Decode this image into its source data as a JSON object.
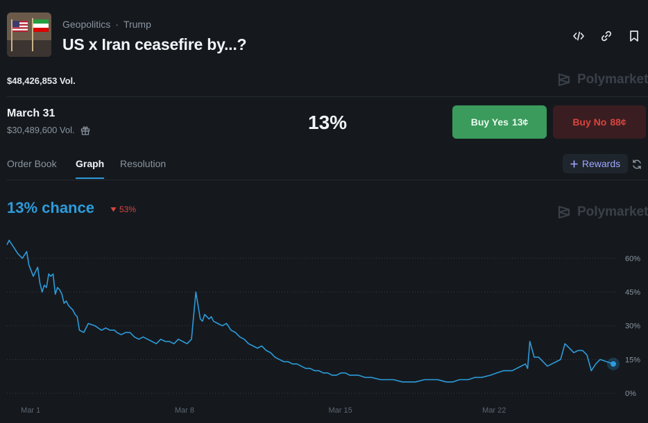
{
  "header": {
    "breadcrumbs": [
      "Geopolitics",
      "Trump"
    ],
    "separator": "·",
    "title": "US x Iran ceasefire by...?",
    "volume": "$48,426,853 Vol.",
    "brand": "Polymarket"
  },
  "outcome": {
    "date": "March 31",
    "volume": "$30,489,600 Vol.",
    "probability": "13%",
    "buy_yes_label": "Buy Yes",
    "buy_yes_price": "13¢",
    "buy_no_label": "Buy No",
    "buy_no_price": "88¢"
  },
  "tabs": [
    "Order Book",
    "Graph",
    "Resolution"
  ],
  "active_tab": "Graph",
  "rewards_label": "Rewards",
  "chart_header": {
    "chance": "13% chance",
    "change": "53%",
    "change_direction": "down",
    "brand": "Polymarket"
  },
  "colors": {
    "accent": "#2d9cdb",
    "yes": "#3a9b5c",
    "no": "#d9453f"
  },
  "chart_data": {
    "type": "line",
    "title": "",
    "xlabel": "",
    "ylabel": "",
    "x_ticks": [
      "Mar 1",
      "Mar 8",
      "Mar 15",
      "Mar 22"
    ],
    "y_ticks": [
      "60%",
      "45%",
      "30%",
      "15%",
      "0%"
    ],
    "ylim": [
      0,
      70
    ],
    "xlim": [
      0,
      27.6
    ],
    "grid": "horizontal dotted",
    "series": [
      {
        "x": [
          0,
          0.1,
          0.3,
          0.5,
          0.7,
          0.9,
          1.0,
          1.2,
          1.4,
          1.5,
          1.6,
          1.7,
          1.8,
          1.9,
          2.0,
          2.1,
          2.2,
          2.3,
          2.4,
          2.5,
          2.6,
          2.7,
          2.8,
          2.9,
          3.0,
          3.1,
          3.2,
          3.3,
          3.5,
          3.7,
          4.0,
          4.3,
          4.5,
          4.7,
          4.9,
          5.0,
          5.2,
          5.4,
          5.6,
          5.8,
          6.0,
          6.2,
          6.4,
          6.6,
          6.8,
          7.0,
          7.2,
          7.4,
          7.6,
          7.8,
          8.0,
          8.2,
          8.4,
          8.6,
          8.8,
          8.9,
          9.0,
          9.1,
          9.2,
          9.3,
          9.4,
          9.6,
          9.8,
          10.0,
          10.2,
          10.4,
          10.6,
          10.8,
          11.0,
          11.2,
          11.4,
          11.6,
          11.8,
          12.0,
          12.2,
          12.4,
          12.6,
          12.8,
          13.0,
          13.2,
          13.4,
          13.6,
          13.8,
          14.0,
          14.2,
          14.4,
          14.6,
          14.8,
          15.0,
          15.2,
          15.4,
          15.6,
          15.8,
          16.0,
          16.3,
          16.6,
          17.0,
          17.3,
          17.6,
          18.0,
          18.3,
          18.6,
          19.0,
          19.3,
          19.6,
          20.0,
          20.3,
          20.6,
          21.0,
          21.3,
          21.6,
          22.0,
          22.3,
          22.6,
          23.0,
          23.2,
          23.4,
          23.6,
          23.7,
          23.8,
          24.0,
          24.2,
          24.4,
          24.6,
          24.8,
          25.0,
          25.2,
          25.4,
          25.6,
          25.8,
          26.0,
          26.2,
          26.4,
          26.6,
          26.8,
          27.0,
          27.3,
          27.6
        ],
        "y": [
          66,
          68,
          65,
          62,
          60,
          63,
          57,
          52,
          56,
          49,
          45,
          48,
          47,
          53,
          52,
          53,
          44,
          47,
          46,
          44,
          40,
          41,
          39,
          38,
          37,
          35,
          34,
          28,
          27,
          31,
          30,
          28,
          29,
          28,
          28,
          27,
          26,
          27,
          27,
          25,
          24,
          25,
          24,
          23,
          22,
          24,
          23,
          23,
          22,
          24,
          23,
          22,
          24,
          45,
          33,
          32,
          35,
          34,
          33,
          34,
          32,
          31,
          30,
          31,
          28,
          27,
          25,
          24,
          22,
          21,
          20,
          21,
          19,
          18,
          16,
          15,
          14,
          14,
          13,
          13,
          12,
          11,
          11,
          10,
          10,
          9,
          9,
          8,
          8,
          9,
          9,
          8,
          8,
          8,
          7,
          7,
          6,
          6,
          6,
          5,
          5,
          5,
          6,
          6,
          6,
          5,
          5,
          6,
          6,
          7,
          7,
          8,
          9,
          10,
          10,
          11,
          12,
          13,
          11,
          23,
          16,
          16,
          14,
          12,
          13,
          14,
          15,
          22,
          20,
          18,
          19,
          19,
          17,
          10,
          13,
          15,
          14,
          13
        ]
      }
    ]
  }
}
